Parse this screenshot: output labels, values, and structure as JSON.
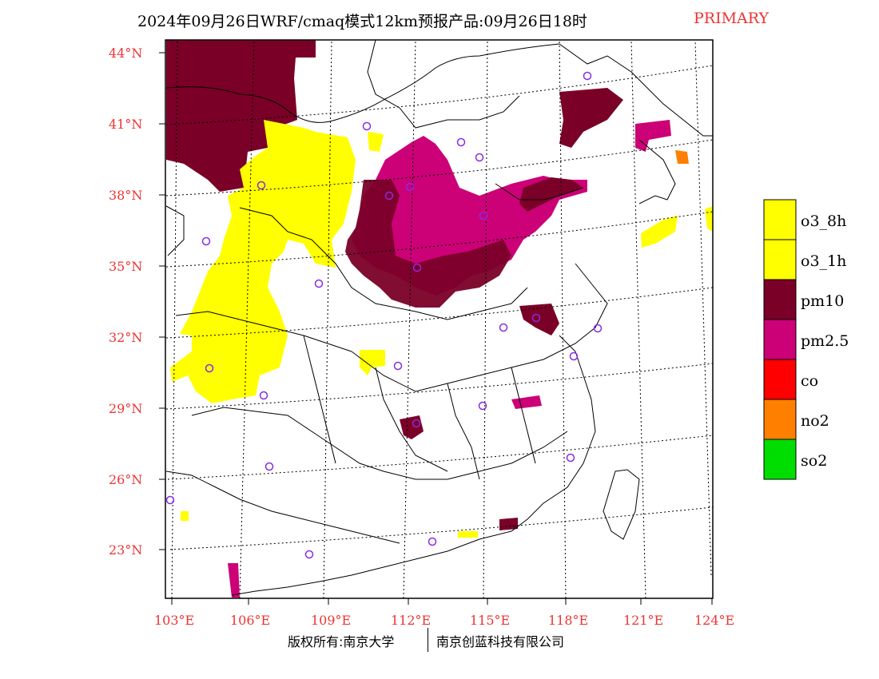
{
  "title": "2024年09月26日WRF/cmaq模式12km预报产品:09月26日18时",
  "title_primary": "PRIMARY",
  "copyright_left": "版权所有:南京大学",
  "copyright_right": "南京创蓝科技有限公司",
  "lat_labels": [
    "23°N",
    "26°N",
    "29°N",
    "32°N",
    "35°N",
    "38°N",
    "41°N",
    "44°N"
  ],
  "lon_labels": [
    "103°E",
    "106°E",
    "109°E",
    "112°E",
    "115°E",
    "118°E",
    "121°E",
    "124°E"
  ],
  "legend": [
    {
      "label": "o3_8h",
      "color": "#ffff00"
    },
    {
      "label": "o3_1h",
      "color": "#ffff00"
    },
    {
      "label": "pm10",
      "color": "#7a0028"
    },
    {
      "label": "pm2.5",
      "color": "#cc0077"
    },
    {
      "label": "co",
      "color": "#ff0000"
    },
    {
      "label": "no2",
      "color": "#ff7f00"
    },
    {
      "label": "so2",
      "color": "#00dd00"
    }
  ]
}
